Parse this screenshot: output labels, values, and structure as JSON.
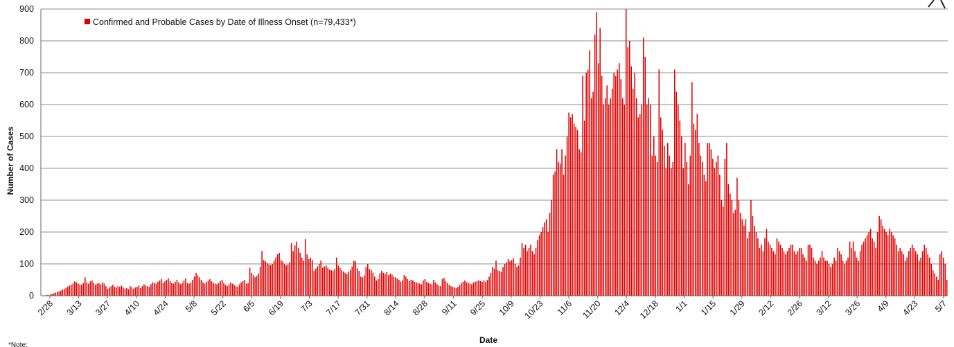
{
  "chart_data": {
    "type": "bar",
    "title": "",
    "xlabel": "Date",
    "ylabel": "Number of Cases",
    "ylim": [
      0,
      900
    ],
    "y_ticks": [
      0,
      100,
      200,
      300,
      400,
      500,
      600,
      700,
      800,
      900
    ],
    "x_tick_labels": [
      "2/28",
      "3/13",
      "3/27",
      "4/10",
      "4/24",
      "5/8",
      "5/22",
      "6/5",
      "6/19",
      "7/3",
      "7/17",
      "7/31",
      "8/14",
      "8/28",
      "9/11",
      "9/25",
      "10/9",
      "10/23",
      "11/6",
      "11/20",
      "12/4",
      "12/18",
      "1/1",
      "1/15",
      "1/29",
      "2/12",
      "2/26",
      "3/12",
      "3/26",
      "4/9",
      "4/23",
      "5/7"
    ],
    "grid": true,
    "legend_position": "top-left",
    "color": "#e00000",
    "note": "*Note:",
    "series": [
      {
        "name": "Confirmed and Probable Cases by Date of Illness Onset (n=79,433*)",
        "values": [
          0,
          0,
          1,
          3,
          2,
          4,
          6,
          8,
          10,
          12,
          14,
          16,
          20,
          22,
          25,
          28,
          32,
          35,
          38,
          45,
          42,
          38,
          36,
          35,
          40,
          58,
          42,
          38,
          45,
          48,
          40,
          35,
          38,
          40,
          36,
          42,
          38,
          30,
          22,
          26,
          30,
          34,
          28,
          26,
          30,
          28,
          32,
          26,
          22,
          24,
          20,
          30,
          26,
          22,
          26,
          28,
          32,
          24,
          30,
          36,
          32,
          30,
          28,
          36,
          42,
          40,
          38,
          44,
          48,
          52,
          40,
          45,
          50,
          55,
          46,
          40,
          38,
          44,
          50,
          42,
          36,
          40,
          48,
          55,
          40,
          38,
          42,
          50,
          60,
          72,
          64,
          58,
          50,
          42,
          38,
          44,
          48,
          52,
          45,
          40,
          38,
          36,
          40,
          46,
          50,
          40,
          34,
          30,
          36,
          42,
          38,
          34,
          30,
          28,
          36,
          42,
          46,
          50,
          38,
          40,
          88,
          72,
          65,
          58,
          62,
          70,
          90,
          140,
          112,
          108,
          102,
          98,
          96,
          100,
          110,
          120,
          130,
          135,
          112,
          108,
          100,
          95,
          98,
          105,
          165,
          140,
          158,
          170,
          150,
          135,
          120,
          110,
          178,
          130,
          115,
          120,
          112,
          78,
          85,
          92,
          100,
          110,
          88,
          92,
          95,
          88,
          82,
          80,
          78,
          85,
          120,
          95,
          88,
          80,
          76,
          72,
          68,
          75,
          80,
          92,
          110,
          108,
          86,
          78,
          60,
          58,
          64,
          90,
          100,
          84,
          80,
          72,
          60,
          48,
          52,
          70,
          78,
          72,
          68,
          74,
          65,
          70,
          66,
          60,
          58,
          54,
          50,
          44,
          48,
          65,
          60,
          52,
          46,
          50,
          48,
          44,
          42,
          40,
          38,
          36,
          48,
          52,
          44,
          40,
          38,
          36,
          50,
          42,
          36,
          32,
          30,
          52,
          56,
          46,
          40,
          34,
          30,
          28,
          26,
          24,
          28,
          34,
          40,
          44,
          48,
          42,
          40,
          38,
          36,
          42,
          44,
          46,
          48,
          46,
          44,
          48,
          44,
          50,
          60,
          72,
          90,
          85,
          110,
          80,
          78,
          75,
          90,
          100,
          105,
          115,
          108,
          112,
          118,
          100,
          90,
          95,
          120,
          165,
          150,
          160,
          140,
          150,
          160,
          140,
          130,
          150,
          175,
          190,
          200,
          215,
          230,
          240,
          200,
          260,
          300,
          380,
          390,
          460,
          420,
          415,
          460,
          380,
          440,
          500,
          575,
          560,
          570,
          540,
          530,
          520,
          460,
          450,
          690,
          550,
          700,
          710,
          770,
          620,
          640,
          820,
          890,
          730,
          840,
          690,
          600,
          620,
          660,
          600,
          620,
          650,
          700,
          690,
          710,
          730,
          680,
          620,
          600,
          900,
          780,
          800,
          720,
          650,
          700,
          620,
          560,
          570,
          600,
          810,
          750,
          600,
          620,
          600,
          440,
          500,
          440,
          420,
          710,
          560,
          520,
          470,
          400,
          480,
          440,
          400,
          420,
          710,
          640,
          600,
          550,
          500,
          400,
          480,
          420,
          350,
          440,
          670,
          540,
          520,
          570,
          480,
          440,
          420,
          380,
          360,
          480,
          480,
          460,
          430,
          400,
          420,
          440,
          380,
          300,
          280,
          430,
          480,
          350,
          320,
          300,
          260,
          270,
          370,
          300,
          260,
          240,
          220,
          240,
          180,
          200,
          300,
          250,
          220,
          200,
          180,
          150,
          160,
          140,
          180,
          210,
          170,
          160,
          150,
          140,
          130,
          180,
          170,
          160,
          150,
          140,
          130,
          140,
          150,
          160,
          160,
          140,
          130,
          140,
          150,
          150,
          130,
          120,
          110,
          160,
          160,
          150,
          120,
          110,
          100,
          110,
          120,
          140,
          120,
          110,
          110,
          100,
          90,
          100,
          120,
          110,
          150,
          140,
          130,
          110,
          100,
          110,
          120,
          170,
          150,
          170,
          140,
          120,
          110,
          140,
          160,
          170,
          180,
          190,
          200,
          210,
          180,
          170,
          150,
          200,
          250,
          240,
          220,
          210,
          200,
          190,
          210,
          200,
          190,
          180,
          160,
          140,
          150,
          140,
          130,
          110,
          120,
          140,
          150,
          160,
          150,
          140,
          130,
          110,
          120,
          140,
          160,
          150,
          130,
          120,
          100,
          80,
          70,
          60,
          50,
          130,
          140,
          120,
          100,
          50
        ]
      }
    ]
  }
}
